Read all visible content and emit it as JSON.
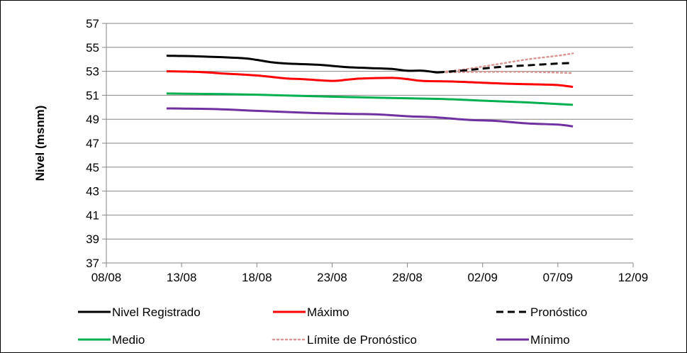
{
  "chart_data": {
    "type": "line",
    "title": "",
    "xlabel": "",
    "ylabel": "Nivel (msnm)",
    "x_ticks": [
      "08/08",
      "13/08",
      "18/08",
      "23/08",
      "28/08",
      "02/09",
      "07/09",
      "12/09"
    ],
    "x_range_days": [
      "08/08",
      "12/09"
    ],
    "ylim": [
      37,
      57
    ],
    "y_ticks": [
      37,
      39,
      41,
      43,
      45,
      47,
      49,
      51,
      53,
      55,
      57
    ],
    "grid": "horizontal",
    "legend_position": "bottom",
    "series": [
      {
        "name": "Nivel Registrado",
        "color": "#000000",
        "style": "solid",
        "points": [
          [
            "12/08",
            54.3
          ],
          [
            "14/08",
            54.25
          ],
          [
            "17/08",
            54.1
          ],
          [
            "18/08",
            53.95
          ],
          [
            "19/08",
            53.75
          ],
          [
            "20/08",
            53.65
          ],
          [
            "22/08",
            53.55
          ],
          [
            "24/08",
            53.35
          ],
          [
            "26/08",
            53.25
          ],
          [
            "27/08",
            53.2
          ],
          [
            "28/08",
            53.05
          ],
          [
            "29/08",
            53.05
          ],
          [
            "30/08",
            52.9
          ]
        ]
      },
      {
        "name": "Máximo",
        "color": "#ff0000",
        "style": "solid",
        "points": [
          [
            "12/08",
            53.0
          ],
          [
            "14/08",
            52.95
          ],
          [
            "16/08",
            52.8
          ],
          [
            "18/08",
            52.65
          ],
          [
            "20/08",
            52.4
          ],
          [
            "21/08",
            52.35
          ],
          [
            "23/08",
            52.2
          ],
          [
            "24/08",
            52.3
          ],
          [
            "25/08",
            52.4
          ],
          [
            "27/08",
            52.45
          ],
          [
            "28/08",
            52.35
          ],
          [
            "29/08",
            52.2
          ],
          [
            "31/08",
            52.15
          ],
          [
            "02/09",
            52.05
          ],
          [
            "04/09",
            51.95
          ],
          [
            "06/09",
            51.9
          ],
          [
            "07/09",
            51.85
          ],
          [
            "08/09",
            51.7
          ]
        ]
      },
      {
        "name": "Pronóstico",
        "color": "#000000",
        "style": "dashed",
        "points": [
          [
            "30/08",
            52.9
          ],
          [
            "01/09",
            53.1
          ],
          [
            "03/09",
            53.35
          ],
          [
            "05/09",
            53.5
          ],
          [
            "07/09",
            53.65
          ],
          [
            "08/09",
            53.7
          ]
        ]
      },
      {
        "name": "Medio",
        "color": "#00b050",
        "style": "solid",
        "points": [
          [
            "12/08",
            51.15
          ],
          [
            "18/08",
            51.05
          ],
          [
            "24/08",
            50.85
          ],
          [
            "30/08",
            50.7
          ],
          [
            "02/09",
            50.55
          ],
          [
            "05/09",
            50.4
          ],
          [
            "08/09",
            50.2
          ]
        ]
      },
      {
        "name": "Límite de Pronóstico",
        "color": "#d99694",
        "style": "dotted",
        "points": [
          [
            "30/08",
            52.9
          ],
          [
            "01/09",
            53.2
          ],
          [
            "03/09",
            53.6
          ],
          [
            "05/09",
            54.0
          ],
          [
            "07/09",
            54.3
          ],
          [
            "08/09",
            54.5
          ]
        ]
      },
      {
        "name": "Límite de Pronóstico (inferior)",
        "legend": false,
        "color": "#d99694",
        "style": "dotted",
        "points": [
          [
            "30/08",
            52.9
          ],
          [
            "02/09",
            52.95
          ],
          [
            "05/09",
            52.95
          ],
          [
            "08/09",
            52.85
          ]
        ]
      },
      {
        "name": "Mínimo",
        "color": "#7030a0",
        "style": "solid",
        "points": [
          [
            "12/08",
            49.9
          ],
          [
            "15/08",
            49.85
          ],
          [
            "18/08",
            49.7
          ],
          [
            "21/08",
            49.55
          ],
          [
            "24/08",
            49.45
          ],
          [
            "26/08",
            49.4
          ],
          [
            "28/08",
            49.25
          ],
          [
            "30/08",
            49.15
          ],
          [
            "01/09",
            48.95
          ],
          [
            "03/09",
            48.85
          ],
          [
            "05/09",
            48.65
          ],
          [
            "07/09",
            48.55
          ],
          [
            "08/09",
            48.4
          ]
        ]
      }
    ],
    "legend": [
      {
        "label": "Nivel Registrado",
        "color": "#000000",
        "style": "solid"
      },
      {
        "label": "Máximo",
        "color": "#ff0000",
        "style": "solid"
      },
      {
        "label": "Pronóstico",
        "color": "#000000",
        "style": "dashed"
      },
      {
        "label": "Medio",
        "color": "#00b050",
        "style": "solid"
      },
      {
        "label": "Límite de Pronóstico",
        "color": "#d99694",
        "style": "dotted"
      },
      {
        "label": "Mínimo",
        "color": "#7030a0",
        "style": "solid"
      }
    ]
  }
}
